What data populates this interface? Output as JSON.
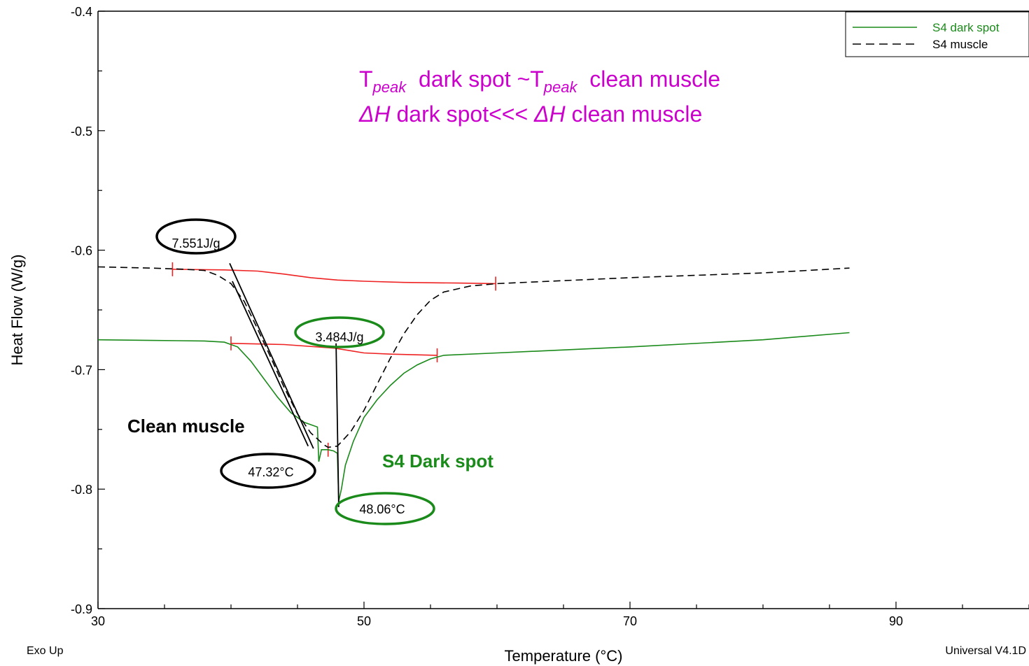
{
  "chart_data": {
    "type": "line",
    "title": "",
    "xlabel": "Temperature (°C)",
    "ylabel": "Heat Flow (W/g)",
    "xlim": [
      30,
      100
    ],
    "ylim": [
      -0.9,
      -0.4
    ],
    "x_ticks": [
      30,
      50,
      70,
      90
    ],
    "x_tick_labels": [
      "30",
      "50",
      "70",
      "90"
    ],
    "y_ticks": [
      -0.4,
      -0.5,
      -0.6,
      -0.7,
      -0.8,
      -0.9
    ],
    "y_tick_labels": [
      "-0.4",
      "-0.5",
      "-0.6",
      "-0.7",
      "-0.8",
      "-0.9"
    ],
    "grid": false,
    "legend_position": "top-right",
    "colors": {
      "dark_spot": "#1a8a1a",
      "muscle": "#000000",
      "baseline": "#ee2222",
      "annotation": "#cc00cc"
    },
    "series": [
      {
        "name": "S4 dark spot",
        "style": "solid",
        "color": "#1a8a1a",
        "points": [
          [
            30,
            -0.675
          ],
          [
            34,
            -0.6755
          ],
          [
            38,
            -0.676
          ],
          [
            39.5,
            -0.677
          ],
          [
            40.5,
            -0.681
          ],
          [
            41.5,
            -0.693
          ],
          [
            42.5,
            -0.708
          ],
          [
            43.5,
            -0.723
          ],
          [
            44.5,
            -0.736
          ],
          [
            45.5,
            -0.744
          ],
          [
            46.5,
            -0.748
          ],
          [
            46.6,
            -0.777
          ],
          [
            46.8,
            -0.767
          ],
          [
            47.3,
            -0.767
          ],
          [
            47.7,
            -0.768
          ],
          [
            48.0,
            -0.77
          ],
          [
            48.1,
            -0.81
          ],
          [
            48.3,
            -0.8
          ],
          [
            48.6,
            -0.78
          ],
          [
            49.2,
            -0.76
          ],
          [
            50,
            -0.74
          ],
          [
            51,
            -0.725
          ],
          [
            52,
            -0.713
          ],
          [
            53,
            -0.703
          ],
          [
            54,
            -0.696
          ],
          [
            55,
            -0.691
          ],
          [
            56,
            -0.688
          ],
          [
            60,
            -0.686
          ],
          [
            70,
            -0.681
          ],
          [
            80,
            -0.675
          ],
          [
            86.5,
            -0.669
          ]
        ]
      },
      {
        "name": "S4 muscle",
        "style": "dashed",
        "color": "#000000",
        "points": [
          [
            30,
            -0.614
          ],
          [
            34,
            -0.615
          ],
          [
            36.5,
            -0.616
          ],
          [
            38,
            -0.617
          ],
          [
            39,
            -0.621
          ],
          [
            40,
            -0.628
          ],
          [
            41,
            -0.643
          ],
          [
            42,
            -0.666
          ],
          [
            43,
            -0.69
          ],
          [
            44,
            -0.715
          ],
          [
            45,
            -0.737
          ],
          [
            46,
            -0.753
          ],
          [
            47,
            -0.763
          ],
          [
            47.3,
            -0.765
          ],
          [
            48,
            -0.764
          ],
          [
            49,
            -0.752
          ],
          [
            50,
            -0.734
          ],
          [
            51,
            -0.712
          ],
          [
            52,
            -0.69
          ],
          [
            53,
            -0.67
          ],
          [
            54,
            -0.654
          ],
          [
            55,
            -0.642
          ],
          [
            56,
            -0.635
          ],
          [
            58,
            -0.63
          ],
          [
            60,
            -0.628
          ],
          [
            70,
            -0.623
          ],
          [
            80,
            -0.619
          ],
          [
            86.5,
            -0.615
          ]
        ]
      }
    ],
    "baselines": [
      {
        "points": [
          [
            35.6,
            -0.616
          ],
          [
            39.5,
            -0.6165
          ],
          [
            42,
            -0.6175
          ],
          [
            44,
            -0.62
          ],
          [
            46,
            -0.623
          ],
          [
            48,
            -0.625
          ],
          [
            50,
            -0.626
          ],
          [
            53,
            -0.627
          ],
          [
            57,
            -0.6275
          ],
          [
            59.9,
            -0.628
          ]
        ],
        "markers": [
          [
            35.6,
            -0.616
          ],
          [
            59.9,
            -0.628
          ]
        ]
      },
      {
        "points": [
          [
            40,
            -0.678
          ],
          [
            44,
            -0.679
          ],
          [
            47.8,
            -0.682
          ],
          [
            50,
            -0.686
          ],
          [
            52,
            -0.687
          ],
          [
            55.5,
            -0.688
          ]
        ],
        "markers": [
          [
            40,
            -0.678
          ],
          [
            55.5,
            -0.688
          ]
        ]
      }
    ],
    "peak_markers": [
      [
        47.3,
        -0.767
      ]
    ],
    "tangent_lines": [
      [
        [
          39.9,
          -0.611
        ],
        [
          46.2,
          -0.766
        ]
      ],
      [
        [
          40.1,
          -0.626
        ],
        [
          45.8,
          -0.764
        ]
      ],
      [
        [
          47.9,
          -0.678
        ],
        [
          48.1,
          -0.815
        ]
      ]
    ],
    "annotations": {
      "line1_prefix": "T",
      "line1_sub1": "peak",
      "line1_mid": "  dark spot ~T",
      "line1_sub2": "peak",
      "line1_suffix": "  clean muscle",
      "line2_delta1": "ΔH",
      "line2_mid": " dark spot<<< ",
      "line2_delta2": "ΔH",
      "line2_suffix": " clean muscle",
      "clean_muscle": "Clean muscle",
      "dark_spot": "S4 Dark spot"
    },
    "callouts": [
      {
        "text": "7.551J/g",
        "color": "#000000"
      },
      {
        "text": "3.484J/g",
        "color": "#1a8a1a"
      },
      {
        "text": "47.32°C",
        "color": "#000000"
      },
      {
        "text": "48.06°C",
        "color": "#1a8a1a"
      }
    ]
  },
  "footer": {
    "left": "Exo Up",
    "right": "Universal V4.1D"
  }
}
